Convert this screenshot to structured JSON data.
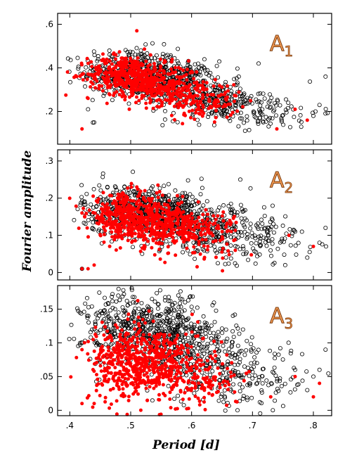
{
  "chart_data": {
    "type": "scatter",
    "xlabel": "Period [d]",
    "ylabel": "Fourier amplitude",
    "xlim": [
      0.38,
      0.83
    ],
    "x_ticks": [
      ".4",
      ".5",
      ".6",
      ".7",
      ".8"
    ],
    "x_tick_values": [
      0.4,
      0.5,
      0.6,
      0.7,
      0.8
    ],
    "marker_styles": {
      "open": "#000000",
      "filled": "#ff0000"
    },
    "panels": [
      {
        "label_main": "A",
        "label_sub": "1",
        "ylim": [
          0.05,
          0.65
        ],
        "y_ticks": [
          ".2",
          ".4",
          ".6"
        ],
        "y_tick_values": [
          0.2,
          0.4,
          0.6
        ],
        "open_cloud": [
          {
            "x": 0.5,
            "y": 0.38,
            "sx": 0.04,
            "sy": 0.055,
            "n": 360
          },
          {
            "x": 0.57,
            "y": 0.33,
            "sx": 0.035,
            "sy": 0.05,
            "n": 320
          },
          {
            "x": 0.64,
            "y": 0.25,
            "sx": 0.04,
            "sy": 0.045,
            "n": 200
          },
          {
            "x": 0.72,
            "y": 0.2,
            "sx": 0.045,
            "sy": 0.04,
            "n": 90
          }
        ],
        "filled_cloud": [
          {
            "x": 0.49,
            "y": 0.37,
            "sx": 0.03,
            "sy": 0.045,
            "n": 330
          },
          {
            "x": 0.55,
            "y": 0.32,
            "sx": 0.03,
            "sy": 0.045,
            "n": 280
          },
          {
            "x": 0.62,
            "y": 0.25,
            "sx": 0.03,
            "sy": 0.04,
            "n": 130
          }
        ],
        "open_points": [
          [
            0.82,
            0.36
          ],
          [
            0.81,
            0.23
          ],
          [
            0.8,
            0.18
          ],
          [
            0.78,
            0.13
          ],
          [
            0.71,
            0.42
          ],
          [
            0.43,
            0.21
          ],
          [
            0.44,
            0.15
          ]
        ],
        "filled_points": [
          [
            0.42,
            0.12
          ],
          [
            0.42,
            0.37
          ],
          [
            0.51,
            0.57
          ],
          [
            0.77,
            0.21
          ],
          [
            0.79,
            0.16
          ],
          [
            0.74,
            0.12
          ],
          [
            0.43,
            0.26
          ]
        ]
      },
      {
        "label_main": "A",
        "label_sub": "2",
        "ylim": [
          -0.02,
          0.33
        ],
        "y_ticks": [
          "0",
          ".1",
          ".2",
          ".3"
        ],
        "y_tick_values": [
          0.0,
          0.1,
          0.2,
          0.3
        ],
        "open_cloud": [
          {
            "x": 0.5,
            "y": 0.17,
            "sx": 0.04,
            "sy": 0.035,
            "n": 360
          },
          {
            "x": 0.57,
            "y": 0.15,
            "sx": 0.035,
            "sy": 0.035,
            "n": 320
          },
          {
            "x": 0.64,
            "y": 0.11,
            "sx": 0.04,
            "sy": 0.035,
            "n": 200
          },
          {
            "x": 0.72,
            "y": 0.09,
            "sx": 0.045,
            "sy": 0.035,
            "n": 90
          }
        ],
        "filled_cloud": [
          {
            "x": 0.49,
            "y": 0.15,
            "sx": 0.03,
            "sy": 0.03,
            "n": 330
          },
          {
            "x": 0.55,
            "y": 0.13,
            "sx": 0.03,
            "sy": 0.03,
            "n": 280
          },
          {
            "x": 0.62,
            "y": 0.11,
            "sx": 0.03,
            "sy": 0.03,
            "n": 130
          }
        ],
        "open_points": [
          [
            0.82,
            0.12
          ],
          [
            0.81,
            0.08
          ],
          [
            0.79,
            0.04
          ],
          [
            0.77,
            0.11
          ],
          [
            0.68,
            0.25
          ],
          [
            0.42,
            0.01
          ],
          [
            0.43,
            0.17
          ]
        ],
        "filled_points": [
          [
            0.42,
            0.01
          ],
          [
            0.43,
            0.01
          ],
          [
            0.44,
            0.02
          ],
          [
            0.42,
            0.16
          ],
          [
            0.8,
            0.07
          ],
          [
            0.76,
            0.1
          ],
          [
            0.51,
            0.23
          ]
        ]
      },
      {
        "label_main": "A",
        "label_sub": "3",
        "ylim": [
          -0.008,
          0.185
        ],
        "y_ticks": [
          "0",
          ".05",
          ".1",
          ".15"
        ],
        "y_tick_values": [
          0.0,
          0.05,
          0.1,
          0.15
        ],
        "open_cloud": [
          {
            "x": 0.5,
            "y": 0.12,
            "sx": 0.04,
            "sy": 0.028,
            "n": 360
          },
          {
            "x": 0.57,
            "y": 0.11,
            "sx": 0.035,
            "sy": 0.028,
            "n": 320
          },
          {
            "x": 0.64,
            "y": 0.07,
            "sx": 0.04,
            "sy": 0.028,
            "n": 200
          },
          {
            "x": 0.72,
            "y": 0.05,
            "sx": 0.045,
            "sy": 0.025,
            "n": 90
          }
        ],
        "filled_cloud": [
          {
            "x": 0.49,
            "y": 0.07,
            "sx": 0.03,
            "sy": 0.028,
            "n": 330
          },
          {
            "x": 0.55,
            "y": 0.07,
            "sx": 0.03,
            "sy": 0.028,
            "n": 280
          },
          {
            "x": 0.62,
            "y": 0.05,
            "sx": 0.03,
            "sy": 0.025,
            "n": 130
          }
        ],
        "open_points": [
          [
            0.82,
            0.09
          ],
          [
            0.81,
            0.06
          ],
          [
            0.8,
            0.05
          ],
          [
            0.79,
            0.03
          ],
          [
            0.77,
            0.06
          ],
          [
            0.42,
            0.1
          ],
          [
            0.48,
            0.18
          ]
        ],
        "filled_points": [
          [
            0.42,
            0.09
          ],
          [
            0.42,
            0.01
          ],
          [
            0.44,
            0.01
          ],
          [
            0.77,
            0.05
          ],
          [
            0.8,
            0.02
          ],
          [
            0.73,
            0.02
          ],
          [
            0.81,
            0.04
          ]
        ]
      }
    ]
  }
}
